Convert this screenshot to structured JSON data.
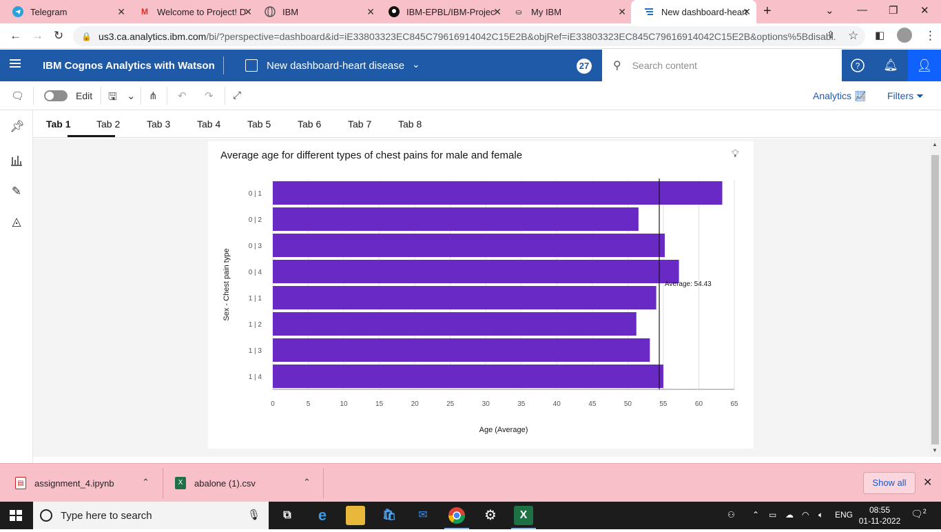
{
  "browser": {
    "tabs": [
      {
        "title": "Telegram",
        "icon": "telegram-icon",
        "color": "#2aa1da"
      },
      {
        "title": "Welcome to Project! D",
        "icon": "gmail-icon",
        "color": "#d93025"
      },
      {
        "title": "IBM",
        "icon": "globe-icon",
        "color": "#555555"
      },
      {
        "title": "IBM-EPBL/IBM-Project",
        "icon": "github-icon",
        "color": "#111111"
      },
      {
        "title": "My IBM",
        "icon": "ibm-icon",
        "color": "#333333"
      },
      {
        "title": "New dashboard-heart",
        "icon": "cognos-icon",
        "color": "#1f70c1"
      }
    ],
    "url_host": "us3.ca.analytics.ibm.com",
    "url_rest": "/bi/?perspective=dashboard&id=iE33803323EC845C79616914042C15E2B&objRef=iE33803323EC845C79616914042C15E2B&options%5Bdisabl..."
  },
  "header": {
    "brand": "IBM Cognos Analytics with Watson",
    "dashboard_title": "New dashboard-heart disease",
    "notification_count": "27",
    "search_placeholder": "Search content"
  },
  "toolbar": {
    "edit_label": "Edit",
    "analytics_label": "Analytics",
    "filters_label": "Filters"
  },
  "dashboard_tabs": [
    "Tab 1",
    "Tab 2",
    "Tab 3",
    "Tab 4",
    "Tab 5",
    "Tab 6",
    "Tab 7",
    "Tab 8"
  ],
  "widget": {
    "title": "Average age for different types of chest pains for male and female"
  },
  "chart_data": {
    "type": "bar",
    "orientation": "horizontal",
    "categories": [
      "0 | 1",
      "0 | 2",
      "0 | 3",
      "0 | 4",
      "1 | 1",
      "1 | 2",
      "1 | 3",
      "1 | 4"
    ],
    "values": [
      63.3,
      51.5,
      55.2,
      57.2,
      54.0,
      51.2,
      53.1,
      55.0
    ],
    "xlabel": "Age (Average)",
    "ylabel": "Sex - Chest pain type",
    "xlim": [
      0,
      65
    ],
    "xticks": [
      "0",
      "5",
      "10",
      "15",
      "20",
      "25",
      "30",
      "35",
      "40",
      "45",
      "50",
      "55",
      "60",
      "65"
    ],
    "reference_line": {
      "label": "Average: 54.43",
      "value": 54.43
    },
    "bar_color": "#6929c4"
  },
  "downloads": [
    {
      "name": "assignment_4.ipynb",
      "icon": "pdf-file-icon",
      "color": "#c5221f"
    },
    {
      "name": "abalone (1).csv",
      "icon": "excel-file-icon",
      "color": "#1e7145"
    }
  ],
  "downloads_show_all": "Show all",
  "taskbar": {
    "search_placeholder": "Type here to search",
    "lang": "ENG",
    "time": "08:55",
    "date": "01-11-2022",
    "notif_count": "2"
  }
}
